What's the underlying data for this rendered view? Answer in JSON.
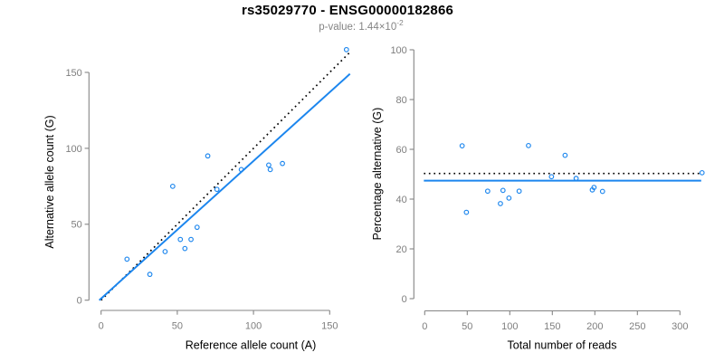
{
  "header": {
    "title": "rs35029770 - ENSG00000182866",
    "subtitle": "p-value: 1.44×10",
    "subtitle_exponent": "-2"
  },
  "colors": {
    "points": "#1C86EE",
    "fit_line": "#1C86EE",
    "reference_line": "#000000",
    "axis": "#858585",
    "tick_label": "#7e7e7e",
    "axis_label": "#000000",
    "title": "#000000",
    "subtitle": "#848484",
    "background": "#ffffff"
  },
  "chart_data": [
    {
      "type": "scatter",
      "name": "allele-counts",
      "xlabel": "Reference allele count (A)",
      "ylabel": "Alternative allele count (G)",
      "xticks": [
        0,
        50,
        100,
        150
      ],
      "yticks": [
        0,
        50,
        100,
        150
      ],
      "xlim": [
        0,
        163
      ],
      "ylim": [
        0,
        166
      ],
      "grid": false,
      "legend": "none",
      "points": {
        "x": [
          17,
          32,
          42,
          47,
          52,
          55,
          59,
          63,
          70,
          76,
          92,
          110,
          111,
          119,
          161
        ],
        "y": [
          27,
          17,
          32,
          75,
          40,
          34,
          40,
          48,
          95,
          73,
          86,
          89,
          86,
          90,
          165
        ]
      },
      "lines": [
        {
          "name": "identity-line",
          "style": "dotted",
          "color": "#000000",
          "x1": 0,
          "y1": 0,
          "x2": 163,
          "y2": 163
        },
        {
          "name": "fit-line",
          "style": "solid",
          "color": "#1C86EE",
          "x1": -1.2,
          "y1": 0,
          "x2": 163.3,
          "y2": 149
        }
      ]
    },
    {
      "type": "scatter",
      "name": "percentage-vs-coverage",
      "xlabel": "Total number of reads",
      "ylabel": "Percentage alternative (G)",
      "xticks": [
        0,
        50,
        100,
        150,
        200,
        250,
        300
      ],
      "yticks": [
        0,
        20,
        40,
        60,
        80,
        100
      ],
      "xlim": [
        0,
        326
      ],
      "ylim": [
        0,
        100
      ],
      "grid": false,
      "legend": "none",
      "points": {
        "x": [
          44,
          49,
          74,
          122,
          92,
          89,
          99,
          111,
          165,
          149,
          178,
          199,
          197,
          209,
          326
        ],
        "y": [
          61.4,
          34.7,
          43.2,
          61.5,
          43.5,
          38.2,
          40.4,
          43.2,
          57.6,
          49.0,
          48.3,
          44.7,
          43.7,
          43.1,
          50.6
        ]
      },
      "lines": [
        {
          "name": "expected-50pct-line",
          "style": "dotted",
          "color": "#000000",
          "x1": -1,
          "y1": 50.3,
          "x2": 325,
          "y2": 50.3
        },
        {
          "name": "fit-line",
          "style": "solid",
          "color": "#1C86EE",
          "x1": -1,
          "y1": 47.4,
          "x2": 325,
          "y2": 47.4
        }
      ]
    }
  ]
}
